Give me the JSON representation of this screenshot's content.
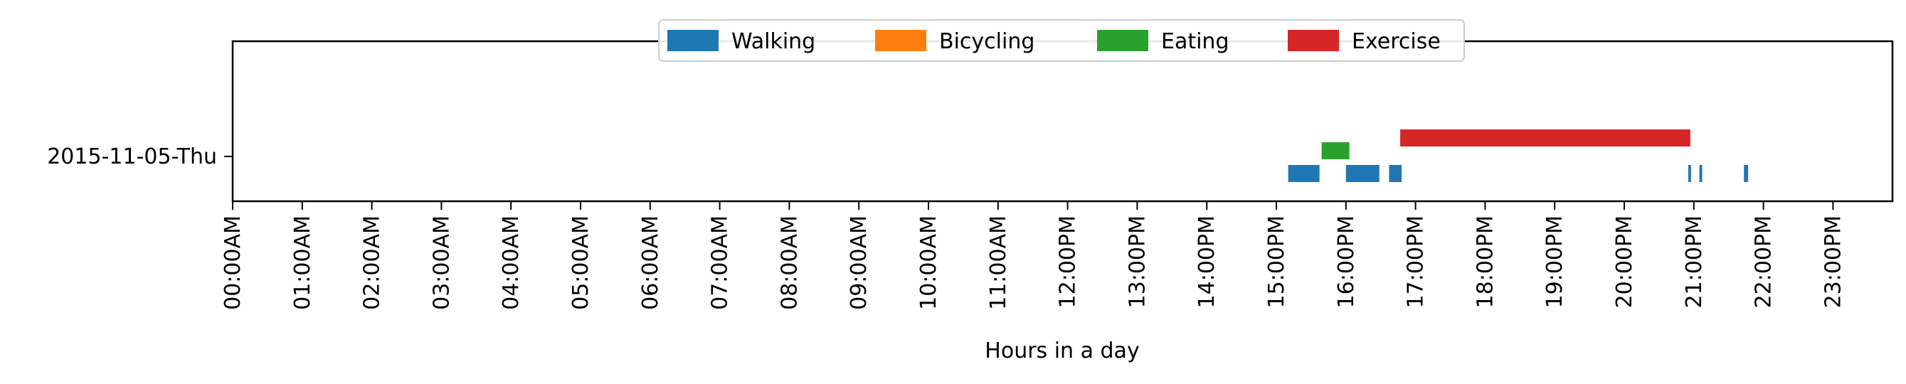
{
  "chart_data": {
    "type": "timeline",
    "xlabel": "Hours in a day",
    "xlim": [
      0,
      24
    ],
    "x_tick_values": [
      0,
      1,
      2,
      3,
      4,
      5,
      6,
      7,
      8,
      9,
      10,
      11,
      12,
      13,
      14,
      15,
      16,
      17,
      18,
      19,
      20,
      21,
      22,
      23
    ],
    "x_tick_labels": [
      "00:00AM",
      "01:00AM",
      "02:00AM",
      "03:00AM",
      "04:00AM",
      "05:00AM",
      "06:00AM",
      "07:00AM",
      "08:00AM",
      "09:00AM",
      "10:00AM",
      "11:00AM",
      "12:00PM",
      "13:00PM",
      "14:00PM",
      "15:00PM",
      "16:00PM",
      "17:00PM",
      "18:00PM",
      "19:00PM",
      "20:00PM",
      "21:00PM",
      "22:00PM",
      "23:00PM"
    ],
    "y_categories": [
      "2015-11-05-Thu"
    ],
    "legend_placement": "top-center",
    "grid": false,
    "series": [
      {
        "name": "Walking",
        "color": "#1f77b4",
        "intervals": [
          [
            15.17,
            15.62
          ],
          [
            16.0,
            16.48
          ],
          [
            16.62,
            16.8
          ],
          [
            20.92,
            20.96
          ],
          [
            21.08,
            21.12
          ],
          [
            21.72,
            21.78
          ]
        ]
      },
      {
        "name": "Bicycling",
        "color": "#ff7f0e",
        "intervals": []
      },
      {
        "name": "Eating",
        "color": "#2ca02c",
        "intervals": [
          [
            15.65,
            16.05
          ]
        ]
      },
      {
        "name": "Exercise",
        "color": "#d62728",
        "intervals": [
          [
            16.78,
            20.95
          ]
        ]
      }
    ]
  }
}
